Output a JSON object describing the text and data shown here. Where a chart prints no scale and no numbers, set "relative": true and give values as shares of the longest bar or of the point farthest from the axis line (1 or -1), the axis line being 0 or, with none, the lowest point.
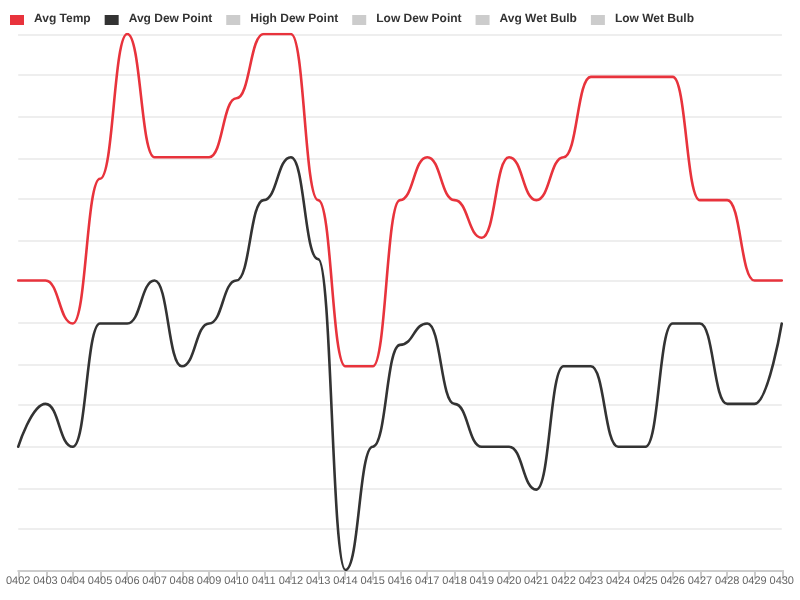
{
  "chart_data": {
    "type": "line",
    "relative": true,
    "grid": "y",
    "legend": "top left",
    "marker": "none",
    "line_style": "solid",
    "categories": [
      "0402",
      "0403",
      "0404",
      "0405",
      "0406",
      "0407",
      "0408",
      "0409",
      "0410",
      "0411",
      "0412",
      "0413",
      "0414",
      "0415",
      "0416",
      "0417",
      "0418",
      "0419",
      "0420",
      "0421",
      "0422",
      "0423",
      "0424",
      "0425",
      "0426",
      "0427",
      "0428",
      "0429",
      "0430"
    ],
    "series": [
      {
        "name": "Avg Temp",
        "color": "#e8333c",
        "values": [
          0.54,
          0.54,
          0.46,
          0.73,
          1,
          0.77,
          0.77,
          0.77,
          0.88,
          1,
          1,
          0.69,
          0.38,
          0.38,
          0.69,
          0.77,
          0.69,
          0.62,
          0.77,
          0.69,
          0.77,
          0.92,
          0.92,
          0.92,
          0.92,
          0.69,
          0.69,
          0.54,
          0.54
        ]
      },
      {
        "name": "Avg Dew Point",
        "color": "#333333",
        "values": [
          0.23,
          0.31,
          0.23,
          0.46,
          0.46,
          0.54,
          0.38,
          0.46,
          0.54,
          0.69,
          0.77,
          0.58,
          0,
          0.23,
          0.42,
          0.46,
          0.31,
          0.23,
          0.23,
          0.15,
          0.38,
          0.38,
          0.23,
          0.23,
          0.46,
          0.46,
          0.31,
          0.31,
          0.46
        ]
      },
      {
        "name": "High Dew Point",
        "color": "#cccccc",
        "values": [
          null,
          null,
          null,
          null,
          null,
          null,
          null,
          null,
          null,
          null,
          null,
          null,
          null,
          null,
          null,
          null,
          null,
          null,
          null,
          null,
          null,
          null,
          null,
          null,
          null,
          null,
          null,
          null,
          null
        ]
      },
      {
        "name": "Low Dew Point",
        "color": "#cccccc",
        "values": [
          null,
          null,
          null,
          null,
          null,
          null,
          null,
          null,
          null,
          null,
          null,
          null,
          null,
          null,
          null,
          null,
          null,
          null,
          null,
          null,
          null,
          null,
          null,
          null,
          null,
          null,
          null,
          null,
          null
        ]
      },
      {
        "name": "Avg Wet Bulb",
        "color": "#cccccc",
        "values": [
          null,
          null,
          null,
          null,
          null,
          null,
          null,
          null,
          null,
          null,
          null,
          null,
          null,
          null,
          null,
          null,
          null,
          null,
          null,
          null,
          null,
          null,
          null,
          null,
          null,
          null,
          null,
          null,
          null
        ]
      },
      {
        "name": "Low Wet Bulb",
        "color": "#cccccc",
        "values": [
          null,
          null,
          null,
          null,
          null,
          null,
          null,
          null,
          null,
          null,
          null,
          null,
          null,
          null,
          null,
          null,
          null,
          null,
          null,
          null,
          null,
          null,
          null,
          null,
          null,
          null,
          null,
          null,
          null
        ]
      }
    ]
  }
}
